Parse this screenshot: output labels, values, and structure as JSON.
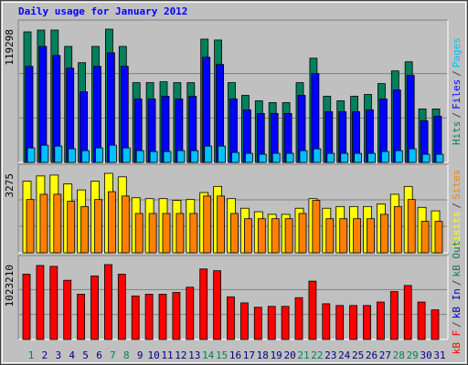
{
  "chart_data": [
    {
      "type": "bar",
      "title": "Daily usage for January 2012",
      "ylim": [
        0,
        119298
      ],
      "yticks": [
        119298
      ],
      "grid": true,
      "series": [
        {
          "name": "Hits",
          "color": "#00805c",
          "values": [
            116870,
            118490,
            118490,
            103880,
            89280,
            103880,
            119298,
            103880,
            71420,
            71420,
            72230,
            71420,
            71420,
            110380,
            109570,
            71420,
            60060,
            55190,
            53570,
            53570,
            71420,
            93330,
            59250,
            55190,
            59250,
            60870,
            70610,
            81970,
            90090,
            47880,
            47880
          ]
        },
        {
          "name": "Files",
          "color": "#0000ff",
          "values": [
            86030,
            103880,
            95770,
            84410,
            63300,
            86030,
            98200,
            86030,
            56810,
            56810,
            59250,
            56810,
            59250,
            94150,
            87650,
            56810,
            47070,
            43830,
            43830,
            43830,
            60060,
            79540,
            45450,
            45450,
            45450,
            47070,
            56810,
            64930,
            77910,
            37330,
            41390
          ]
        },
        {
          "name": "Pages",
          "color": "#00c0ff",
          "values": [
            12990,
            15420,
            14610,
            12170,
            10550,
            12990,
            15420,
            12990,
            10550,
            9740,
            9740,
            10550,
            10550,
            14610,
            14610,
            8930,
            8120,
            7300,
            8120,
            8120,
            10550,
            12170,
            8120,
            8120,
            8120,
            8120,
            9740,
            10550,
            12170,
            7300,
            7300
          ]
        }
      ]
    },
    {
      "type": "bar",
      "ylim": [
        0,
        3275
      ],
      "yticks": [
        3275
      ],
      "grid": true,
      "series": [
        {
          "name": "Visits",
          "color": "#ffff00",
          "values": [
            2952,
            3168,
            3204,
            2844,
            2592,
            2952,
            3275,
            3132,
            2268,
            2232,
            2232,
            2160,
            2196,
            2484,
            2736,
            2232,
            1836,
            1692,
            1584,
            1584,
            1836,
            2232,
            1836,
            1908,
            1908,
            1908,
            2016,
            2412,
            2736,
            1872,
            1728
          ]
        },
        {
          "name": "Sites",
          "color": "#ff8000",
          "values": [
            2196,
            2412,
            2412,
            2124,
            1908,
            2196,
            2520,
            2340,
            1620,
            1620,
            1620,
            1620,
            1620,
            2340,
            2340,
            1620,
            1404,
            1404,
            1404,
            1404,
            1620,
            2160,
            1404,
            1404,
            1404,
            1404,
            1584,
            1908,
            2196,
            1296,
            1296
          ]
        }
      ]
    },
    {
      "type": "bar",
      "ylim": [
        0,
        1023210
      ],
      "yticks": [
        1023210
      ],
      "grid": true,
      "legend_separator": "/",
      "categories": [
        "1",
        "2",
        "3",
        "4",
        "5",
        "6",
        "7",
        "8",
        "9",
        "10",
        "11",
        "12",
        "13",
        "14",
        "15",
        "16",
        "17",
        "18",
        "19",
        "20",
        "21",
        "22",
        "23",
        "24",
        "25",
        "26",
        "27",
        "28",
        "29",
        "30",
        "31"
      ],
      "weekend": [
        true,
        false,
        false,
        false,
        false,
        false,
        true,
        true,
        false,
        false,
        false,
        false,
        false,
        true,
        true,
        false,
        false,
        false,
        false,
        false,
        true,
        true,
        false,
        false,
        false,
        false,
        false,
        true,
        true,
        false,
        false
      ],
      "series": [
        {
          "name": "kB F",
          "color": "#ff0000",
          "values": [
            892350,
            1011330,
            999430,
            809060,
            618700,
            868550,
            1023210,
            892350,
            594900,
            618700,
            618700,
            642490,
            713880,
            963740,
            939940,
            583000,
            499720,
            440230,
            452120,
            452120,
            571100,
            797170,
            487820,
            464020,
            464020,
            464020,
            511610,
            654390,
            737680,
            511610,
            404530
          ]
        },
        {
          "name": "kB In",
          "color": "#0000c0"
        },
        {
          "name": "kB Out",
          "color": "#00805c"
        }
      ]
    }
  ]
}
